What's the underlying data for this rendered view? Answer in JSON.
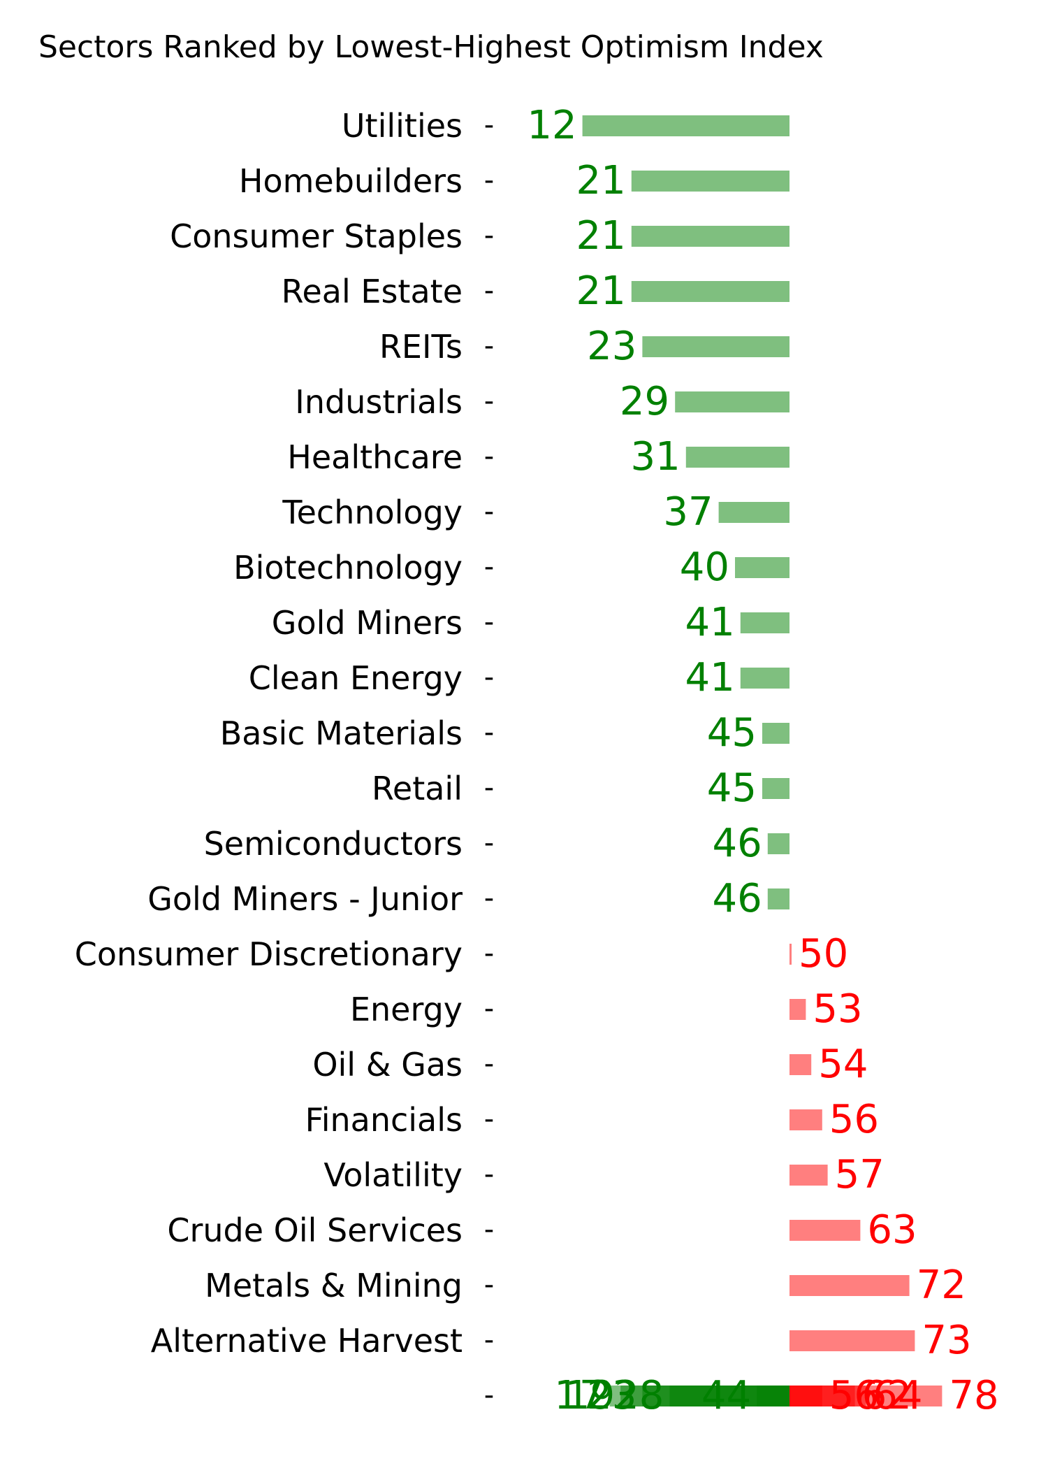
{
  "chart_data": {
    "type": "bar",
    "orientation": "horizontal",
    "title": "Sectors Ranked by Lowest-Highest Optimism Index",
    "baseline": 50,
    "colors": {
      "low": "#008000",
      "high": "#ff0000"
    },
    "categories": [
      "Utilities",
      "Homebuilders",
      "Consumer Staples",
      "Real Estate",
      "REITs",
      "Industrials",
      "Healthcare",
      "Technology",
      "Biotechnology",
      "Gold Miners",
      "Clean Energy",
      "Basic Materials",
      "Retail",
      "Semiconductors",
      "Gold Miners - Junior",
      "Consumer Discretionary",
      "Energy",
      "Oil & Gas",
      "Financials",
      "Volatility",
      "Crude Oil Services",
      "Metals & Mining",
      "Alternative Harvest",
      ""
    ],
    "values": [
      12,
      21,
      21,
      21,
      23,
      29,
      31,
      37,
      40,
      41,
      41,
      45,
      45,
      46,
      46,
      50,
      53,
      54,
      56,
      57,
      63,
      72,
      73,
      null
    ],
    "labels": [
      "12",
      "21",
      "21",
      "21",
      "23",
      "29",
      "31",
      "37",
      "40",
      "41",
      "41",
      "45",
      "45",
      "46",
      "46",
      "50",
      "53",
      "54",
      "56",
      "57",
      "63",
      "72",
      "73",
      ""
    ],
    "overlap_row_values": [
      17,
      19,
      23,
      28,
      44,
      56,
      62,
      64,
      78
    ]
  }
}
